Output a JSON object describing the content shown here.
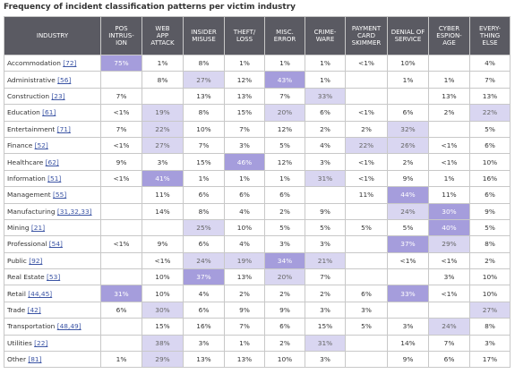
{
  "chart_data": {
    "type": "table",
    "title": "Frequency of incident classification patterns per victim industry",
    "header_industry": "INDUSTRY",
    "columns": [
      [
        "POS",
        "INTRUS-",
        "ION"
      ],
      [
        "WEB",
        "APP",
        "ATTACK"
      ],
      [
        "INSIDER",
        "MISUSE"
      ],
      [
        "THEFT/",
        "LOSS"
      ],
      [
        "MISC.",
        "ERROR"
      ],
      [
        "CRIME-",
        "WARE"
      ],
      [
        "PAYMENT",
        "CARD",
        "SKIMMER"
      ],
      [
        "DENIAL OF",
        "SERVICE"
      ],
      [
        "CYBER",
        "ESPION-",
        "AGE"
      ],
      [
        "EVERY-",
        "THING",
        "ELSE"
      ]
    ],
    "rows": [
      {
        "industry": "Accommodation",
        "code": "[72]",
        "values": [
          "75%",
          "1%",
          "8%",
          "1%",
          "1%",
          "1%",
          "<1%",
          "10%",
          "",
          "4%"
        ],
        "shade": [
          2,
          0,
          0,
          0,
          0,
          0,
          0,
          0,
          0,
          0
        ]
      },
      {
        "industry": "Administrative",
        "code": "[56]",
        "values": [
          "",
          "8%",
          "27%",
          "12%",
          "43%",
          "1%",
          "",
          "1%",
          "1%",
          "7%"
        ],
        "shade": [
          0,
          0,
          1,
          0,
          2,
          0,
          0,
          0,
          0,
          0
        ]
      },
      {
        "industry": "Construction",
        "code": "[23]",
        "values": [
          "7%",
          "",
          "13%",
          "13%",
          "7%",
          "33%",
          "",
          "",
          "13%",
          "13%"
        ],
        "shade": [
          0,
          0,
          0,
          0,
          0,
          1,
          0,
          0,
          0,
          0
        ]
      },
      {
        "industry": "Education",
        "code": "[61]",
        "values": [
          "<1%",
          "19%",
          "8%",
          "15%",
          "20%",
          "6%",
          "<1%",
          "6%",
          "2%",
          "22%"
        ],
        "shade": [
          0,
          1,
          0,
          0,
          1,
          0,
          0,
          0,
          0,
          1
        ]
      },
      {
        "industry": "Entertainment",
        "code": "[71]",
        "values": [
          "7%",
          "22%",
          "10%",
          "7%",
          "12%",
          "2%",
          "2%",
          "32%",
          "",
          "5%"
        ],
        "shade": [
          0,
          1,
          0,
          0,
          0,
          0,
          0,
          1,
          0,
          0
        ]
      },
      {
        "industry": "Finance",
        "code": "[52]",
        "values": [
          "<1%",
          "27%",
          "7%",
          "3%",
          "5%",
          "4%",
          "22%",
          "26%",
          "<1%",
          "6%"
        ],
        "shade": [
          0,
          1,
          0,
          0,
          0,
          0,
          1,
          1,
          0,
          0
        ]
      },
      {
        "industry": "Healthcare",
        "code": "[62]",
        "values": [
          "9%",
          "3%",
          "15%",
          "46%",
          "12%",
          "3%",
          "<1%",
          "2%",
          "<1%",
          "10%"
        ],
        "shade": [
          0,
          0,
          0,
          2,
          0,
          0,
          0,
          0,
          0,
          0
        ]
      },
      {
        "industry": "Information",
        "code": "[51]",
        "values": [
          "<1%",
          "41%",
          "1%",
          "1%",
          "1%",
          "31%",
          "<1%",
          "9%",
          "1%",
          "16%"
        ],
        "shade": [
          0,
          2,
          0,
          0,
          0,
          1,
          0,
          0,
          0,
          0
        ]
      },
      {
        "industry": "Management",
        "code": "[55]",
        "values": [
          "",
          "11%",
          "6%",
          "6%",
          "6%",
          "",
          "11%",
          "44%",
          "11%",
          "6%"
        ],
        "shade": [
          0,
          0,
          0,
          0,
          0,
          0,
          0,
          2,
          0,
          0
        ]
      },
      {
        "industry": "Manufacturing",
        "code": "[31,32,33]",
        "values": [
          "",
          "14%",
          "8%",
          "4%",
          "2%",
          "9%",
          "",
          "24%",
          "30%",
          "9%"
        ],
        "shade": [
          0,
          0,
          0,
          0,
          0,
          0,
          0,
          1,
          2,
          0
        ]
      },
      {
        "industry": "Mining",
        "code": "[21]",
        "values": [
          "",
          "",
          "25%",
          "10%",
          "5%",
          "5%",
          "5%",
          "5%",
          "40%",
          "5%"
        ],
        "shade": [
          0,
          0,
          1,
          0,
          0,
          0,
          0,
          0,
          2,
          0
        ]
      },
      {
        "industry": "Professional",
        "code": "[54]",
        "values": [
          "<1%",
          "9%",
          "6%",
          "4%",
          "3%",
          "3%",
          "",
          "37%",
          "29%",
          "8%"
        ],
        "shade": [
          0,
          0,
          0,
          0,
          0,
          0,
          0,
          2,
          1,
          0
        ]
      },
      {
        "industry": "Public",
        "code": "[92]",
        "values": [
          "",
          "<1%",
          "24%",
          "19%",
          "34%",
          "21%",
          "",
          "<1%",
          "<1%",
          "2%"
        ],
        "shade": [
          0,
          0,
          1,
          1,
          2,
          1,
          0,
          0,
          0,
          0
        ]
      },
      {
        "industry": "Real Estate",
        "code": "[53]",
        "values": [
          "",
          "10%",
          "37%",
          "13%",
          "20%",
          "7%",
          "",
          "",
          "3%",
          "10%"
        ],
        "shade": [
          0,
          0,
          2,
          0,
          1,
          0,
          0,
          0,
          0,
          0
        ]
      },
      {
        "industry": "Retail",
        "code": "[44,45]",
        "values": [
          "31%",
          "10%",
          "4%",
          "2%",
          "2%",
          "2%",
          "6%",
          "33%",
          "<1%",
          "10%"
        ],
        "shade": [
          2,
          0,
          0,
          0,
          0,
          0,
          0,
          2,
          0,
          0
        ]
      },
      {
        "industry": "Trade",
        "code": "[42]",
        "values": [
          "6%",
          "30%",
          "6%",
          "9%",
          "9%",
          "3%",
          "3%",
          "",
          "",
          "27%"
        ],
        "shade": [
          0,
          1,
          0,
          0,
          0,
          0,
          0,
          0,
          0,
          1
        ]
      },
      {
        "industry": "Transportation",
        "code": "[48,49]",
        "values": [
          "",
          "15%",
          "16%",
          "7%",
          "6%",
          "15%",
          "5%",
          "3%",
          "24%",
          "8%"
        ],
        "shade": [
          0,
          0,
          0,
          0,
          0,
          0,
          0,
          0,
          1,
          0
        ]
      },
      {
        "industry": "Utilities",
        "code": "[22]",
        "values": [
          "",
          "38%",
          "3%",
          "1%",
          "2%",
          "31%",
          "",
          "14%",
          "7%",
          "3%"
        ],
        "shade": [
          0,
          1,
          0,
          0,
          0,
          1,
          0,
          0,
          0,
          0
        ]
      },
      {
        "industry": "Other",
        "code": "[81]",
        "values": [
          "1%",
          "29%",
          "13%",
          "13%",
          "10%",
          "3%",
          "",
          "9%",
          "6%",
          "17%"
        ],
        "shade": [
          0,
          1,
          0,
          0,
          0,
          0,
          0,
          0,
          0,
          0
        ]
      }
    ]
  }
}
